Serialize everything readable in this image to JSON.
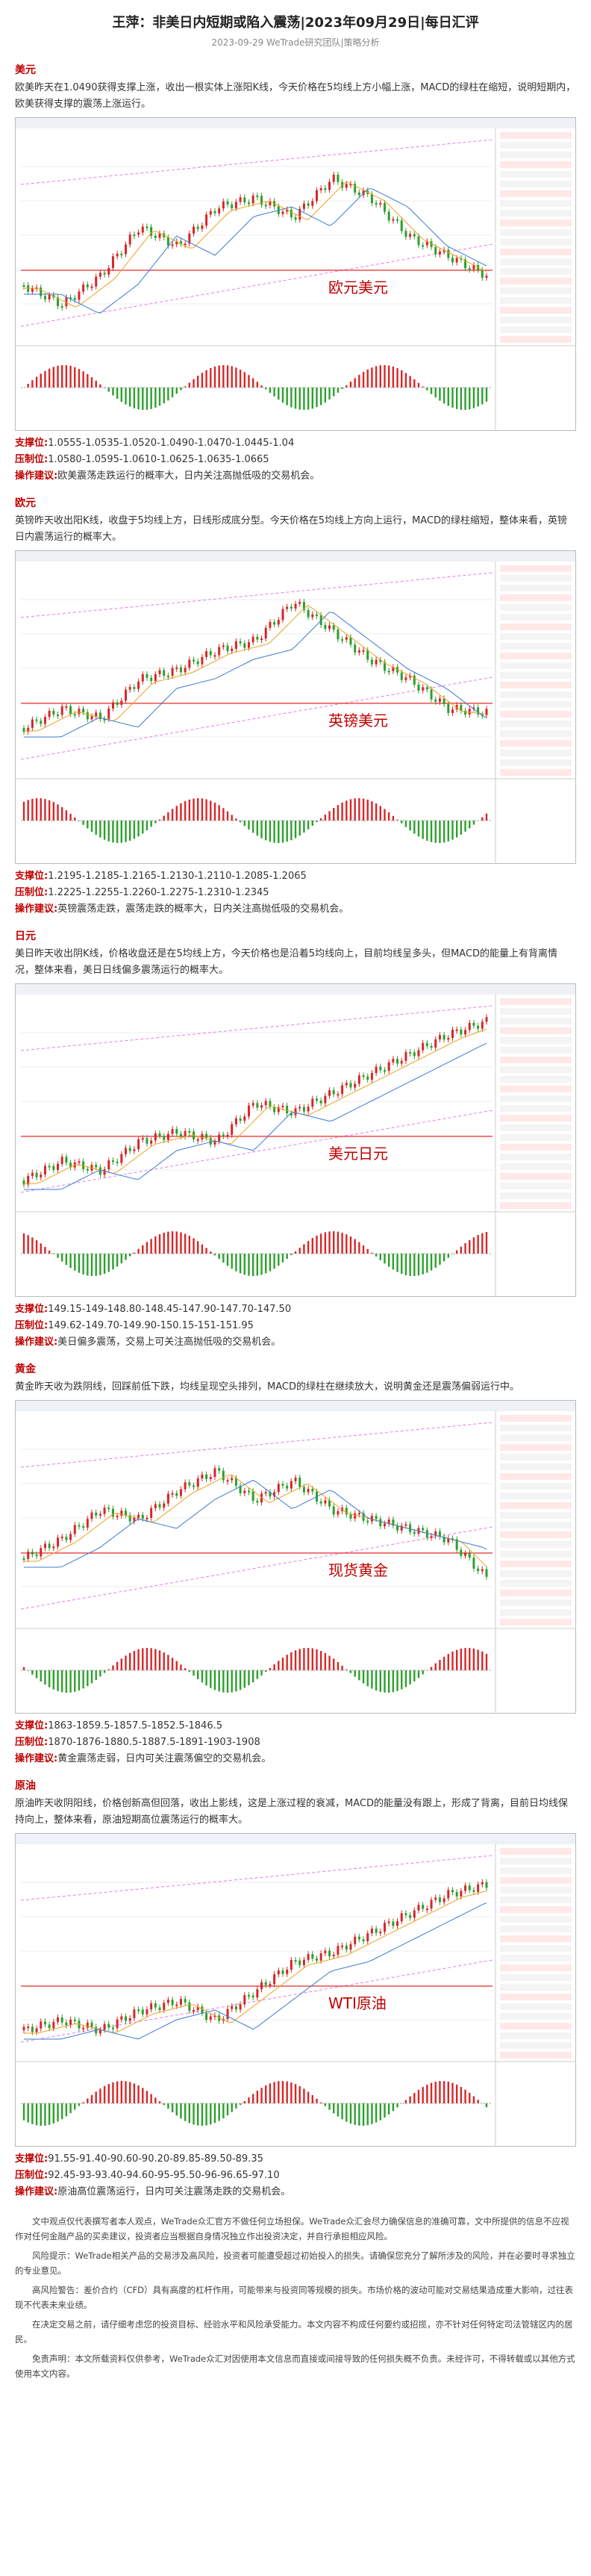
{
  "header": {
    "title": "王萍：非美日内短期或陷入震荡|2023年09月29日|每日汇评",
    "subtitle": "2023-09-29 WeTrade研究团队|策略分析"
  },
  "sections": [
    {
      "heading": "美元",
      "summary": "欧美昨天在1.0490获得支撑上涨，收出一根实体上涨阳K线，今天价格在5均线上方小幅上涨，MACD的绿柱在缩短，说明短期内，欧美获得支撑的震荡上涨运行。",
      "chart_label": "欧元美元",
      "support_label": "支撑位:",
      "support": "1.0555-1.0535-1.0520-1.0490-1.0470-1.0445-1.04",
      "resistance_label": "压制位:",
      "resistance": "1.0580-1.0595-1.0610-1.0625-1.0635-1.0665",
      "advice_label": "操作建议:",
      "advice": "欧美震荡走跌运行的概率大，日内关注高抛低吸的交易机会。"
    },
    {
      "heading": "欧元",
      "summary": "英镑昨天收出阳K线，收盘于5均线上方，日线形成底分型。今天价格在5均线上方向上运行，MACD的绿柱缩短，整体来看，英镑日内震荡运行的概率大。",
      "chart_label": "英镑美元",
      "support_label": "支撑位:",
      "support": "1.2195-1.2185-1.2165-1.2130-1.2110-1.2085-1.2065",
      "resistance_label": "压制位:",
      "resistance": "1.2225-1.2255-1.2260-1.2275-1.2310-1.2345",
      "advice_label": "操作建议:",
      "advice": "英镑震荡走跌，震荡走跌的概率大，日内关注高抛低吸的交易机会。"
    },
    {
      "heading": "日元",
      "summary": "美日昨天收出阴K线，价格收盘还是在5均线上方，今天价格也是沿着5均线向上，目前均线呈多头，但MACD的能量上有背离情况，整体来看，美日日线偏多震荡运行的概率大。",
      "chart_label": "美元日元",
      "support_label": "支撑位:",
      "support": "149.15-149-148.80-148.45-147.90-147.70-147.50",
      "resistance_label": "压制位:",
      "resistance": "149.62-149.70-149.90-150.15-151-151.95",
      "advice_label": "操作建议:",
      "advice": "美日偏多震荡，交易上可关注高抛低吸的交易机会。"
    },
    {
      "heading": "黄金",
      "summary": "黄金昨天收为跌阴线，回踩前低下跌，均线呈现空头排列，MACD的绿柱在继续放大，说明黄金还是震荡偏弱运行中。",
      "chart_label": "现货黄金",
      "support_label": "支撑位:",
      "support": "1863-1859.5-1857.5-1852.5-1846.5",
      "resistance_label": "压制位:",
      "resistance": "1870-1876-1880.5-1887.5-1891-1903-1908",
      "advice_label": "操作建议:",
      "advice": "黄金震荡走弱，日内可关注震荡偏空的交易机会。"
    },
    {
      "heading": "原油",
      "summary": "原油昨天收阴阳线，价格创新高但回落，收出上影线，这是上涨过程的衰减，MACD的能量没有跟上，形成了背离，目前日均线保持向上，整体来看，原油短期高位震荡运行的概率大。",
      "chart_label": "WTI原油",
      "support_label": "支撑位:",
      "support": "91.55-91.40-90.60-90.20-89.85-89.50-89.35",
      "resistance_label": "压制位:",
      "resistance": "92.45-93-93.40-94.60-95-95.50-96-96.65-97.10",
      "advice_label": "操作建议:",
      "advice": "原油高位震荡运行，日内可关注震荡走跌的交易机会。"
    }
  ],
  "disclaimer": [
    "文中观点仅代表撰写者本人观点，WeTrade众汇官方不做任何立场担保。WeTrade众汇会尽力确保信息的准确可靠，文中所提供的信息不应视作对任何金融产品的买卖建议，投资者应当根据自身情况独立作出投资决定，并自行承担相应风险。",
    "风险提示：WeTrade相关产品的交易涉及高风险，投资者可能遭受超过初始投入的损失。请确保您充分了解所涉及的风险，并在必要时寻求独立的专业意见。",
    "高风险警告：差价合约（CFD）具有高度的杠杆作用，可能带来与投资同等规模的损失。市场价格的波动可能对交易结果造成重大影响，过往表现不代表未来业绩。",
    "在决定交易之前，请仔细考虑您的投资目标、经验水平和风险承受能力。本文内容不构成任何要约或招揽，亦不针对任何特定司法管辖区内的居民。",
    "免责声明：本文所载资料仅供参考，WeTrade众汇对因使用本文信息而直接或间接导致的任何损失概不负责。未经许可，不得转载或以其他方式使用本文内容。"
  ]
}
